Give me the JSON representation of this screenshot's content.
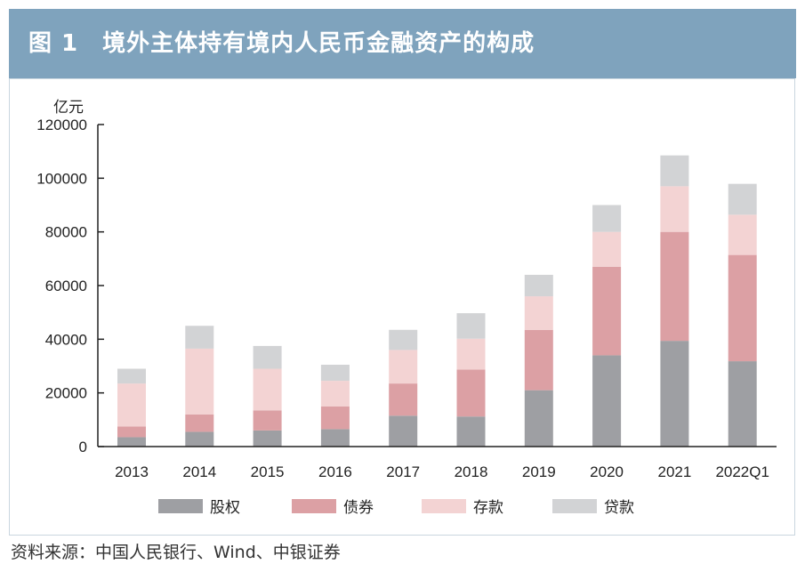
{
  "header": {
    "title": "图 1　境外主体持有境内人民币金融资产的构成"
  },
  "source": "资料来源：中国人民银行、Wind、中银证券",
  "colors": {
    "header_bg": "#7fa3bd",
    "股权": "#9e9fa3",
    "债券": "#dca0a4",
    "存款": "#f3d3d3",
    "贷款": "#d2d3d5"
  },
  "chart_data": {
    "type": "bar",
    "stacked": true,
    "unit_label": "亿元",
    "categories": [
      "2013",
      "2014",
      "2015",
      "2016",
      "2017",
      "2018",
      "2019",
      "2020",
      "2021",
      "2022Q1"
    ],
    "series": [
      {
        "name": "股权",
        "values": [
          3500,
          5500,
          6000,
          6500,
          11500,
          11200,
          21000,
          34000,
          39400,
          31800
        ]
      },
      {
        "name": "债券",
        "values": [
          4000,
          6500,
          7500,
          8500,
          12000,
          17500,
          22500,
          33000,
          40600,
          39600
        ]
      },
      {
        "name": "存款",
        "values": [
          16000,
          24500,
          15500,
          9500,
          12500,
          11500,
          12500,
          13000,
          17000,
          15000
        ]
      },
      {
        "name": "贷款",
        "values": [
          5500,
          8500,
          8500,
          6000,
          7500,
          9500,
          8000,
          10000,
          11500,
          11500
        ]
      }
    ],
    "ylim": [
      0,
      120000
    ],
    "yticks": [
      0,
      20000,
      40000,
      60000,
      80000,
      100000,
      120000
    ],
    "legend_position": "bottom"
  }
}
